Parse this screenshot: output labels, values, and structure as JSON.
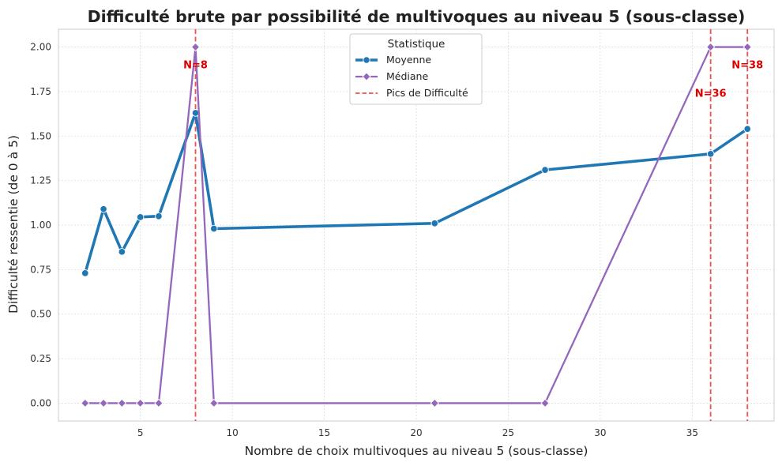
{
  "chart_data": {
    "type": "line",
    "title": "Difficulté brute par possibilité de multivoques au niveau 5 (sous-classe)",
    "xlabel": "Nombre de choix multivoques au niveau 5 (sous-classe)",
    "ylabel": "Difficulté ressentie (de 0 à 5)",
    "xlim": [
      0.55,
      39.45
    ],
    "ylim": [
      -0.1,
      2.1
    ],
    "xticks": [
      5,
      10,
      15,
      20,
      25,
      30,
      35
    ],
    "yticks": [
      0.0,
      0.25,
      0.5,
      0.75,
      1.0,
      1.25,
      1.5,
      1.75,
      2.0
    ],
    "ytick_labels": [
      "0.00",
      "0.25",
      "0.50",
      "0.75",
      "1.00",
      "1.25",
      "1.50",
      "1.75",
      "2.00"
    ],
    "grid": true,
    "legend": {
      "title": "Statistique",
      "placement": "top-center",
      "entries": [
        "Moyenne",
        "Médiane",
        "Pics de Difficulté"
      ]
    },
    "series": [
      {
        "name": "Moyenne",
        "color": "#1f77b4",
        "marker": "circle",
        "x": [
          2,
          3,
          4,
          5,
          6,
          8,
          9,
          21,
          27,
          36,
          38
        ],
        "values": [
          0.73,
          1.09,
          0.85,
          1.045,
          1.05,
          1.63,
          0.98,
          1.01,
          1.31,
          1.4,
          1.54
        ]
      },
      {
        "name": "Médiane",
        "color": "#9467bd",
        "marker": "diamond",
        "x": [
          2,
          3,
          4,
          5,
          6,
          8,
          9,
          21,
          27,
          36,
          38
        ],
        "values": [
          0,
          0,
          0,
          0,
          0,
          2,
          0,
          0,
          0,
          2,
          2
        ]
      }
    ],
    "peaks": {
      "color": "#ee3333",
      "label_color": "#dd0000",
      "x": [
        8,
        36,
        38
      ],
      "labels": [
        "N=8",
        "N=36",
        "N=38"
      ],
      "label_y": [
        1.9,
        1.74,
        1.9
      ]
    }
  }
}
